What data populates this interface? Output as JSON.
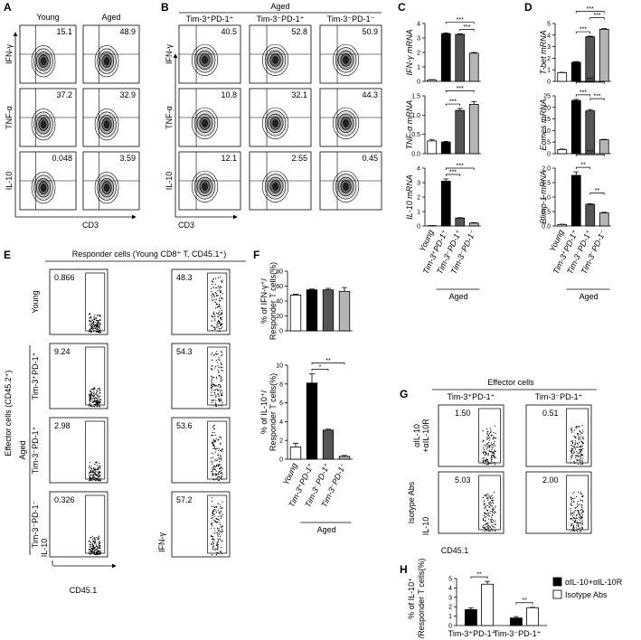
{
  "panel_labels": [
    "A",
    "B",
    "C",
    "D",
    "E",
    "F",
    "G",
    "H"
  ],
  "panel_a": {
    "columns": [
      "Young",
      "Aged"
    ],
    "row_labels": [
      "IFN-γ",
      "TNF-α",
      "IL-10"
    ],
    "x_label": "CD3",
    "percentages": [
      [
        "15.1",
        "48.9"
      ],
      [
        "37.2",
        "32.9"
      ],
      [
        "0.048",
        "3.59"
      ]
    ]
  },
  "panel_b": {
    "header": "Aged",
    "columns": [
      "Tim-3⁺PD-1⁺",
      "Tim-3⁻PD-1⁺",
      "Tim-3⁻PD-1⁻"
    ],
    "row_labels": [
      "IFN-γ",
      "TNF-α",
      "IL-10"
    ],
    "x_label": "CD3",
    "percentages": [
      [
        "40.5",
        "52.8",
        "50.9"
      ],
      [
        "10.8",
        "32.1",
        "44.3"
      ],
      [
        "12.1",
        "2.55",
        "0.45"
      ]
    ]
  },
  "panel_e": {
    "header": "Responder cells (Young CD8⁺ T, CD45.1⁺)",
    "row_labels": [
      "Young",
      "Tim-3⁺PD-1⁺",
      "Tim-3⁻PD-1⁺",
      "Tim-3⁻PD-1⁻"
    ],
    "group_label": "Aged",
    "side_label": "Effector cells (CD45.2⁺)",
    "y_labels": [
      "IL-10",
      "IFN-γ"
    ],
    "x_label": "CD45.1",
    "percentages": [
      [
        "0.866",
        "48.3"
      ],
      [
        "9.24",
        "54.3"
      ],
      [
        "2.98",
        "53.6"
      ],
      [
        "0.326",
        "57.2"
      ]
    ]
  },
  "panel_g": {
    "header": "Effector cells",
    "columns": [
      "Tim-3⁺PD-1⁺",
      "Tim-3⁻PD-1⁺"
    ],
    "row_labels": [
      [
        "αIL-10",
        "+αIL-10R"
      ],
      [
        "Isotype Abs"
      ]
    ],
    "y_label": "IL-10",
    "x_label": "CD45.1",
    "percentages": [
      [
        "1.50",
        "0.51"
      ],
      [
        "5.03",
        "2.00"
      ]
    ]
  },
  "chart_data": [
    {
      "type": "bar",
      "categories": [
        "Young",
        "Tim-3⁺PD-1⁺",
        "Tim-3⁻PD-1⁺",
        "Tim-3⁻PD-1⁻"
      ],
      "group_label": "Aged",
      "colors": [
        "#ffffff",
        "#000000",
        "#555555",
        "#b5b5b5"
      ],
      "italic": true,
      "panels": [
        {
          "y_label": [
            "IFN-γ mRNA"
          ],
          "values": [
            0.1,
            3.3,
            3.25,
            1.95
          ],
          "errors": [
            0.02,
            0.04,
            0.04,
            0.05
          ],
          "ylim": [
            0,
            4
          ],
          "yticks": [
            0,
            1,
            2,
            3,
            4
          ],
          "significance": [
            {
              "label": "***",
              "between": [
                "Tim-3⁻PD-1⁺",
                "Tim-3⁻PD-1⁻"
              ]
            },
            {
              "label": "***",
              "between": [
                "Tim-3⁺PD-1⁺",
                "Tim-3⁻PD-1⁻"
              ]
            }
          ]
        },
        {
          "y_label": [
            "TNF-α mRNA"
          ],
          "values": [
            0.33,
            0.3,
            1.12,
            1.28
          ],
          "errors": [
            0.03,
            0.02,
            0.05,
            0.07
          ],
          "ylim": [
            0,
            1.5
          ],
          "yticks": [
            {
              "value": 0,
              "label": "0.0"
            },
            0.5,
            {
              "value": 1,
              "label": "1.0"
            },
            1.5
          ],
          "significance": [
            {
              "label": "***",
              "between": [
                "Tim-3⁺PD-1⁺",
                "Tim-3⁻PD-1⁺"
              ]
            },
            {
              "label": "***",
              "between": [
                "Tim-3⁺PD-1⁺",
                "Tim-3⁻PD-1⁻"
              ]
            }
          ]
        },
        {
          "y_label": [
            "IL-10 mRNA"
          ],
          "values": [
            0.02,
            3.1,
            0.55,
            0.2
          ],
          "errors": [
            0.01,
            0.15,
            0.03,
            0.03
          ],
          "ylim": [
            0,
            4
          ],
          "yticks": [
            0,
            1,
            2,
            3,
            4
          ],
          "significance": [
            {
              "label": "***",
              "between": [
                "Tim-3⁺PD-1⁺",
                "Tim-3⁻PD-1⁺"
              ]
            },
            {
              "label": "***",
              "between": [
                "Tim-3⁺PD-1⁺",
                "Tim-3⁻PD-1⁻"
              ]
            }
          ]
        }
      ]
    },
    {
      "type": "bar",
      "categories": [
        "Young",
        "Tim-3⁺PD-1⁺",
        "Tim-3⁻PD-1⁺",
        "Tim-3⁻PD-1⁻"
      ],
      "group_label": "Aged",
      "colors": [
        "#ffffff",
        "#000000",
        "#555555",
        "#b5b5b5"
      ],
      "italic": true,
      "panels": [
        {
          "y_label": [
            "T-bet mRNA"
          ],
          "values": [
            0.75,
            1.65,
            3.85,
            4.5
          ],
          "errors": [
            0.03,
            0.06,
            0.05,
            0.06
          ],
          "ylim": [
            0,
            5
          ],
          "yticks": [
            0,
            1,
            2,
            3,
            4,
            5
          ],
          "significance": [
            {
              "label": "***",
              "between": [
                "Tim-3⁺PD-1⁺",
                "Tim-3⁻PD-1⁺"
              ]
            },
            {
              "label": "***",
              "between": [
                "Tim-3⁻PD-1⁺",
                "Tim-3⁻PD-1⁻"
              ]
            },
            {
              "label": "***",
              "between": [
                "Tim-3⁺PD-1⁺",
                "Tim-3⁻PD-1⁻"
              ]
            }
          ]
        },
        {
          "y_label": [
            "Eomes mRNA"
          ],
          "values": [
            1.8,
            23,
            18.5,
            6
          ],
          "errors": [
            0.2,
            0.5,
            0.6,
            0.2
          ],
          "ylim": [
            0,
            25
          ],
          "yticks": [
            0,
            5,
            10,
            15,
            20,
            25
          ],
          "significance": [
            {
              "label": "***",
              "between": [
                "Tim-3⁺PD-1⁺",
                "Tim-3⁻PD-1⁺"
              ]
            },
            {
              "label": "***",
              "between": [
                "Tim-3⁻PD-1⁺",
                "Tim-3⁻PD-1⁻"
              ]
            },
            {
              "label": "***",
              "between": [
                "Tim-3⁺PD-1⁺",
                "Tim-3⁻PD-1⁻"
              ]
            }
          ]
        },
        {
          "y_label": [
            "Blimp-1 mRNA"
          ],
          "values": [
            0.05,
            1.75,
            0.75,
            0.45
          ],
          "errors": [
            0.01,
            0.12,
            0.02,
            0.02
          ],
          "ylim": [
            0,
            2
          ],
          "yticks": [
            {
              "value": 0,
              "label": "0.0"
            },
            0.5,
            {
              "value": 1,
              "label": "1.0"
            },
            1.5,
            {
              "value": 2,
              "label": "2.0"
            }
          ],
          "significance": [
            {
              "label": "**",
              "between": [
                "Tim-3⁺PD-1⁺",
                "Tim-3⁻PD-1⁺"
              ]
            },
            {
              "label": "**",
              "between": [
                "Tim-3⁻PD-1⁺",
                "Tim-3⁻PD-1⁻"
              ]
            },
            {
              "label": "***",
              "between": [
                "Tim-3⁺PD-1⁺",
                "Tim-3⁻PD-1⁻"
              ]
            }
          ]
        }
      ]
    },
    {
      "type": "bar",
      "categories": [
        "Young",
        "Tim-3⁺PD-1⁺",
        "Tim-3⁻PD-1⁺",
        "Tim-3⁻PD-1⁻"
      ],
      "group_label": "Aged",
      "colors": [
        "#ffffff",
        "#000000",
        "#555555",
        "#b5b5b5"
      ],
      "italic": false,
      "panels": [
        {
          "y_label": [
            "% of IFN-γ⁺/",
            "Responder T cells(%)"
          ],
          "values": [
            48,
            55,
            55,
            53
          ],
          "errors": [
            1,
            1,
            2,
            5
          ],
          "ylim": [
            0,
            80
          ],
          "yticks": [
            0,
            20,
            40,
            60,
            80
          ],
          "significance": []
        },
        {
          "y_label": [
            "% of IL-10⁺/",
            "Responder T cells(%)"
          ],
          "values": [
            1.3,
            8.1,
            3.1,
            0.3
          ],
          "errors": [
            0.4,
            1,
            0.1,
            0.1
          ],
          "ylim": [
            0,
            10
          ],
          "yticks": [
            0,
            2,
            4,
            6,
            8,
            10
          ],
          "significance": [
            {
              "label": "*",
              "between": [
                "Tim-3⁺PD-1⁺",
                "Tim-3⁻PD-1⁺"
              ]
            },
            {
              "label": "**",
              "between": [
                "Tim-3⁺PD-1⁺",
                "Tim-3⁻PD-1⁻"
              ]
            }
          ]
        }
      ]
    },
    {
      "type": "grouped_bar",
      "y_label": [
        "% of IL-10⁺",
        "/Responder T cells(%)"
      ],
      "categories": [
        "Tim-3⁺PD-1⁺",
        "Tim-3⁻PD-1⁺"
      ],
      "series": [
        {
          "name": "αIL-10+αIL-10R",
          "color": "#000000",
          "values": [
            1.7,
            0.8
          ],
          "errors": [
            0.2,
            0.15
          ]
        },
        {
          "name": "Isotype Abs",
          "color": "#ffffff",
          "values": [
            4.4,
            1.9
          ],
          "errors": [
            0.3,
            0.05
          ]
        }
      ],
      "ylim": [
        0,
        5
      ],
      "yticks": [
        0,
        1,
        2,
        3,
        4,
        5
      ],
      "legend": "upper right",
      "significance": [
        {
          "label": "**",
          "category": "Tim-3⁺PD-1⁺"
        },
        {
          "label": "**",
          "category": "Tim-3⁻PD-1⁺"
        }
      ]
    }
  ]
}
